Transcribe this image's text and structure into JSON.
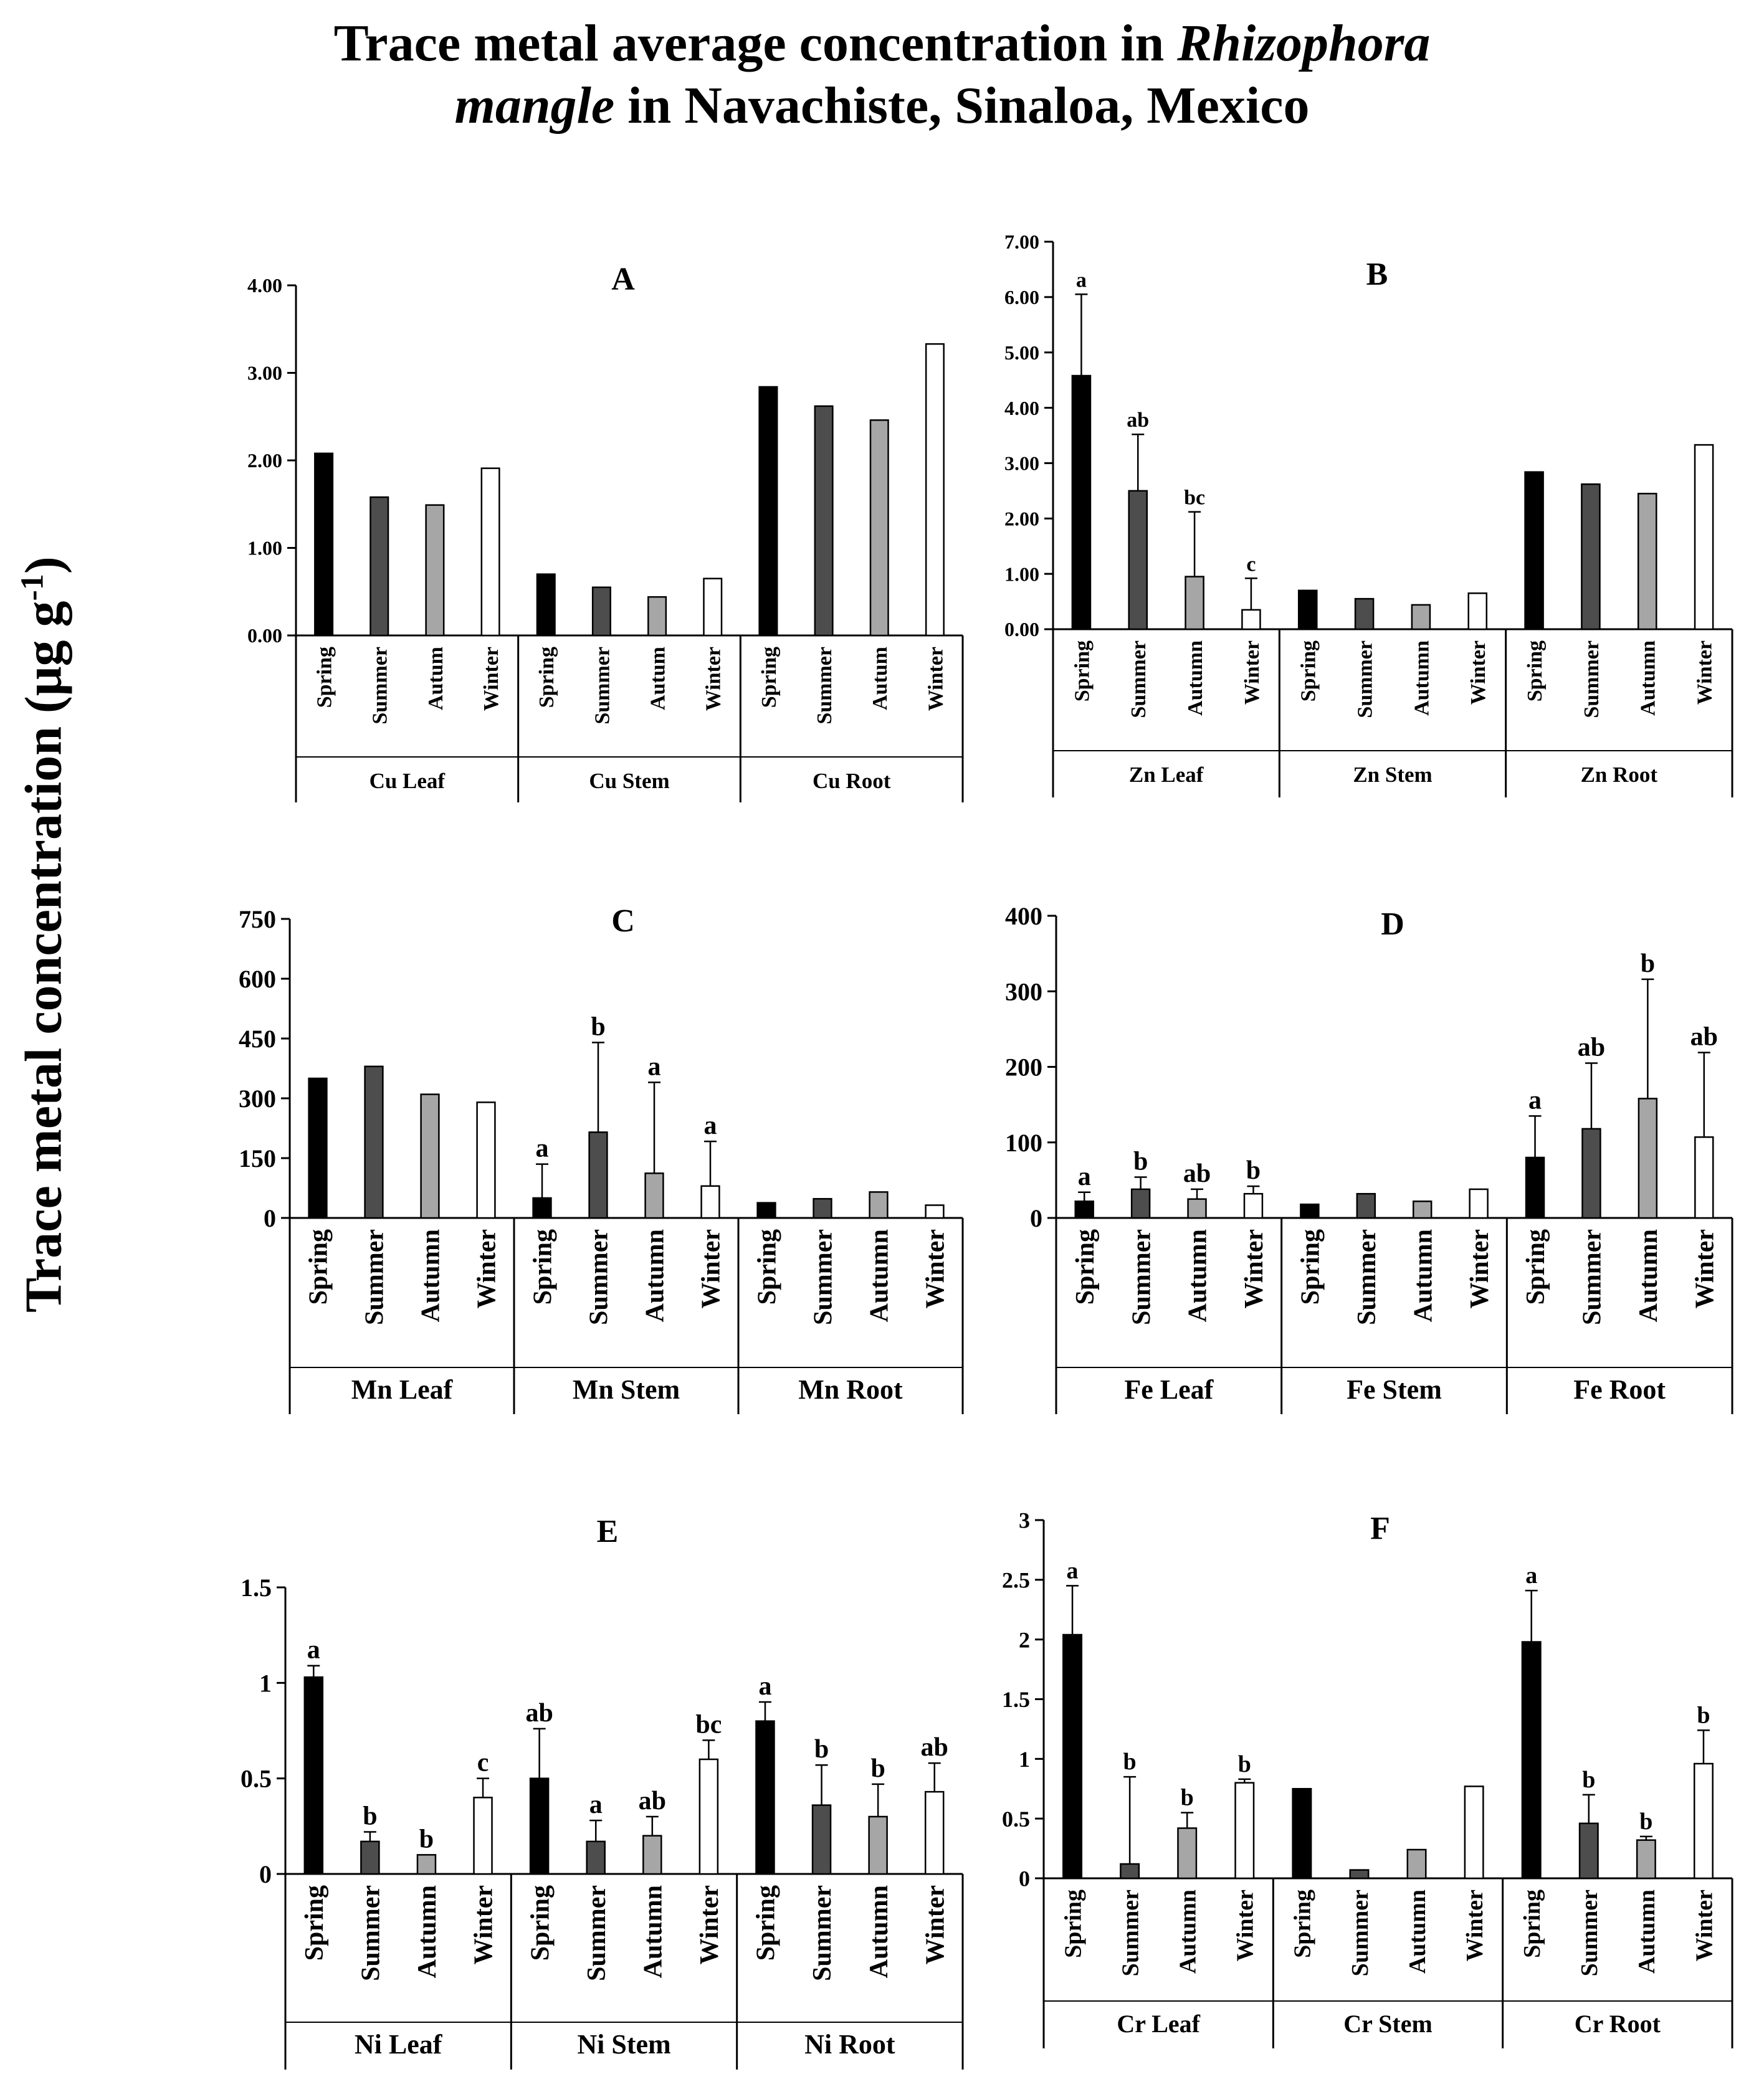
{
  "title": {
    "line1": "Trace metal average concentration in",
    "line1_italic": "Rhizophora",
    "line2_italic": "mangle",
    "line2": "in Navachiste, Sinaloa, Mexico"
  },
  "ylabel": {
    "main": "Trace metal concentration (μg g",
    "sup": "-1",
    "close": ")"
  },
  "colors": {
    "Spring": "#000000",
    "Summer": "#4d4d4d",
    "Autumn": "#a6a6a6",
    "Winter": "#ffffff",
    "edge": "#000000"
  },
  "chart_data": [
    {
      "panel": "A",
      "type": "bar",
      "ylim": [
        0,
        4
      ],
      "yticks": [
        "0.00",
        "1.00",
        "2.00",
        "3.00",
        "4.00"
      ],
      "seasons": [
        "Spring",
        "Summer",
        "Autum",
        "Winter"
      ],
      "groups": [
        {
          "label": "Cu Leaf",
          "values": [
            2.08,
            1.58,
            1.49,
            1.91
          ],
          "errors": [
            null,
            null,
            null,
            null
          ],
          "letters": [
            "",
            "",
            "",
            ""
          ]
        },
        {
          "label": "Cu Stem",
          "values": [
            0.7,
            0.55,
            0.44,
            0.65
          ],
          "errors": [
            null,
            null,
            null,
            null
          ],
          "letters": [
            "",
            "",
            "",
            ""
          ]
        },
        {
          "label": "Cu Root",
          "values": [
            2.84,
            2.62,
            2.46,
            3.33
          ],
          "errors": [
            null,
            null,
            null,
            null
          ],
          "letters": [
            "",
            "",
            "",
            ""
          ]
        }
      ]
    },
    {
      "panel": "B",
      "type": "bar",
      "ylim": [
        0,
        7
      ],
      "yticks": [
        "0.00",
        "1.00",
        "2.00",
        "3.00",
        "4.00",
        "5.00",
        "6.00",
        "7.00"
      ],
      "seasons": [
        "Spring",
        "Summer",
        "Autumn",
        "Winter"
      ],
      "groups": [
        {
          "label": "Zn Leaf",
          "values": [
            4.58,
            2.5,
            0.95,
            0.35
          ],
          "errors": [
            1.47,
            1.02,
            1.17,
            0.57
          ],
          "letters": [
            "a",
            "ab",
            "bc",
            "c"
          ]
        },
        {
          "label": "Zn Stem",
          "values": [
            0.7,
            0.55,
            0.44,
            0.65
          ],
          "errors": [
            null,
            null,
            null,
            null
          ],
          "letters": [
            "",
            "",
            "",
            ""
          ]
        },
        {
          "label": "Zn Root",
          "values": [
            2.84,
            2.62,
            2.45,
            3.33
          ],
          "errors": [
            null,
            null,
            null,
            null
          ],
          "letters": [
            "",
            "",
            "",
            ""
          ]
        }
      ]
    },
    {
      "panel": "C",
      "type": "bar",
      "ylim": [
        0,
        750
      ],
      "yticks": [
        "0",
        "150",
        "300",
        "450",
        "600",
        "750"
      ],
      "seasons": [
        "Spring",
        "Summer",
        "Autumn",
        "Winter"
      ],
      "groups": [
        {
          "label": "Mn Leaf",
          "values": [
            350,
            380,
            310,
            290
          ],
          "errors": [
            null,
            null,
            null,
            null
          ],
          "letters": [
            "",
            "",
            "",
            ""
          ]
        },
        {
          "label": "Mn Stem",
          "values": [
            50,
            215,
            112,
            80
          ],
          "errors": [
            85,
            225,
            228,
            112
          ],
          "letters": [
            "a",
            "b",
            "a",
            "a"
          ]
        },
        {
          "label": "Mn Root",
          "values": [
            38,
            48,
            65,
            32
          ],
          "errors": [
            null,
            null,
            null,
            null
          ],
          "letters": [
            "",
            "",
            "",
            ""
          ]
        }
      ]
    },
    {
      "panel": "D",
      "type": "bar",
      "ylim": [
        0,
        400
      ],
      "yticks": [
        "0",
        "100",
        "200",
        "300",
        "400"
      ],
      "seasons": [
        "Spring",
        "Summer",
        "Autumn",
        "Winter"
      ],
      "groups": [
        {
          "label": "Fe Leaf",
          "values": [
            22,
            38,
            25,
            32
          ],
          "errors": [
            12,
            16,
            13,
            10
          ],
          "letters": [
            "a",
            "b",
            "ab",
            "b"
          ]
        },
        {
          "label": "Fe Stem",
          "values": [
            18,
            32,
            22,
            38
          ],
          "errors": [
            null,
            null,
            null,
            null
          ],
          "letters": [
            "",
            "",
            "",
            ""
          ]
        },
        {
          "label": "Fe Root",
          "values": [
            80,
            118,
            158,
            107
          ],
          "errors": [
            55,
            87,
            158,
            112
          ],
          "letters": [
            "a",
            "ab",
            "b",
            "ab"
          ]
        }
      ]
    },
    {
      "panel": "E",
      "type": "bar",
      "ylim": [
        0,
        1.5
      ],
      "yticks": [
        "0",
        "0.5",
        "1",
        "1.5"
      ],
      "seasons": [
        "Spring",
        "Summer",
        "Autumn",
        "Winter"
      ],
      "groups": [
        {
          "label": "Ni Leaf",
          "values": [
            1.03,
            0.17,
            0.1,
            0.4
          ],
          "errors": [
            0.06,
            0.05,
            null,
            0.1
          ],
          "letters": [
            "a",
            "b",
            "b",
            "c"
          ]
        },
        {
          "label": "Ni Stem",
          "values": [
            0.5,
            0.17,
            0.2,
            0.6
          ],
          "errors": [
            0.26,
            0.11,
            0.1,
            0.1
          ],
          "letters": [
            "ab",
            "a",
            "ab",
            "bc"
          ]
        },
        {
          "label": "Ni Root",
          "values": [
            0.8,
            0.36,
            0.3,
            0.43
          ],
          "errors": [
            0.1,
            0.21,
            0.17,
            0.15
          ],
          "letters": [
            "a",
            "b",
            "b",
            "ab"
          ]
        }
      ]
    },
    {
      "panel": "F",
      "type": "bar",
      "ylim": [
        0,
        3
      ],
      "yticks": [
        "0",
        "0.5",
        "1",
        "1.5",
        "2",
        "2.5",
        "3"
      ],
      "seasons": [
        "Spring",
        "Summer",
        "Autumn",
        "Winter"
      ],
      "groups": [
        {
          "label": "Cr Leaf",
          "values": [
            2.04,
            0.12,
            0.42,
            0.8
          ],
          "errors": [
            0.41,
            0.73,
            0.13,
            0.03
          ],
          "letters": [
            "a",
            "b",
            "b",
            "b"
          ]
        },
        {
          "label": "Cr Stem",
          "values": [
            0.75,
            0.07,
            0.24,
            0.77
          ],
          "errors": [
            null,
            null,
            null,
            null
          ],
          "letters": [
            "",
            "",
            "",
            ""
          ]
        },
        {
          "label": "Cr Root",
          "values": [
            1.98,
            0.46,
            0.32,
            0.96
          ],
          "errors": [
            0.43,
            0.24,
            0.03,
            0.28
          ],
          "letters": [
            "a",
            "b",
            "b",
            "b"
          ]
        }
      ]
    }
  ]
}
